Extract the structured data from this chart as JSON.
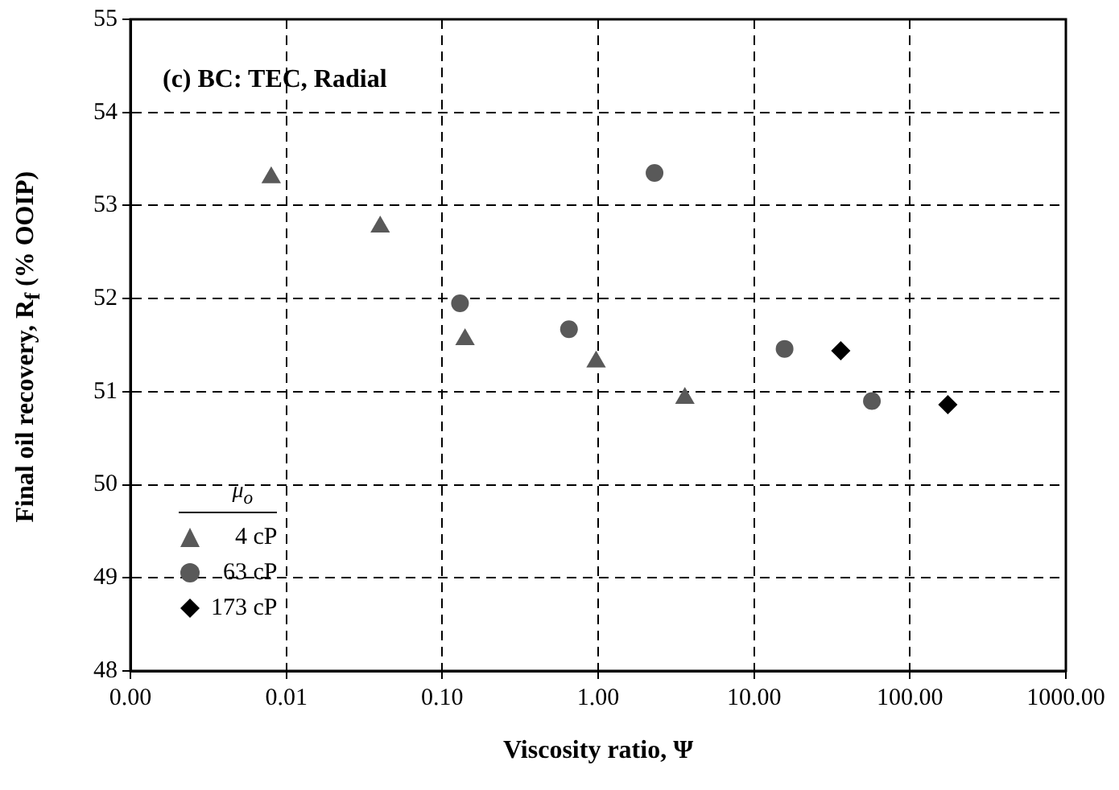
{
  "chart_data": {
    "type": "scatter",
    "annotations": [
      "(c) BC: TEC, Radial"
    ],
    "xlabel": "Viscosity ratio,  Ψ",
    "ylabel": "Final oil recovery, R$_{f}$ (% OOIP)",
    "legend_title": "μ$_{o}$",
    "series": [
      {
        "name": "4 cP",
        "color": "#595959",
        "marker": "triangle",
        "x": [
          0.008,
          0.04,
          0.14,
          0.97,
          3.6
        ],
        "values": [
          53.3,
          52.77,
          51.56,
          51.32,
          50.93
        ]
      },
      {
        "name": "63 cP",
        "color": "#595959",
        "marker": "circle",
        "x": [
          0.13,
          0.65,
          2.3,
          15.7,
          57
        ],
        "values": [
          51.95,
          51.67,
          53.35,
          51.46,
          50.9
        ]
      },
      {
        "name": "173 cP",
        "color": "#000000",
        "marker": "diamond",
        "x": [
          36,
          175
        ],
        "values": [
          51.44,
          50.86
        ]
      }
    ],
    "log": "x",
    "xlim": [
      0.001,
      1000
    ],
    "xticks": [
      {
        "value": 0.001,
        "label": "0.00"
      },
      {
        "value": 0.01,
        "label": "0.01"
      },
      {
        "value": 0.1,
        "label": "0.10"
      },
      {
        "value": 1,
        "label": "1.00"
      },
      {
        "value": 10,
        "label": "10.00"
      },
      {
        "value": 100,
        "label": "100.00"
      },
      {
        "value": 1000,
        "label": "1000.00"
      }
    ],
    "ylim": [
      48,
      55
    ],
    "yticks": [
      48,
      49,
      50,
      51,
      52,
      53,
      54,
      55
    ],
    "grid": true,
    "legend": "bottom left"
  }
}
